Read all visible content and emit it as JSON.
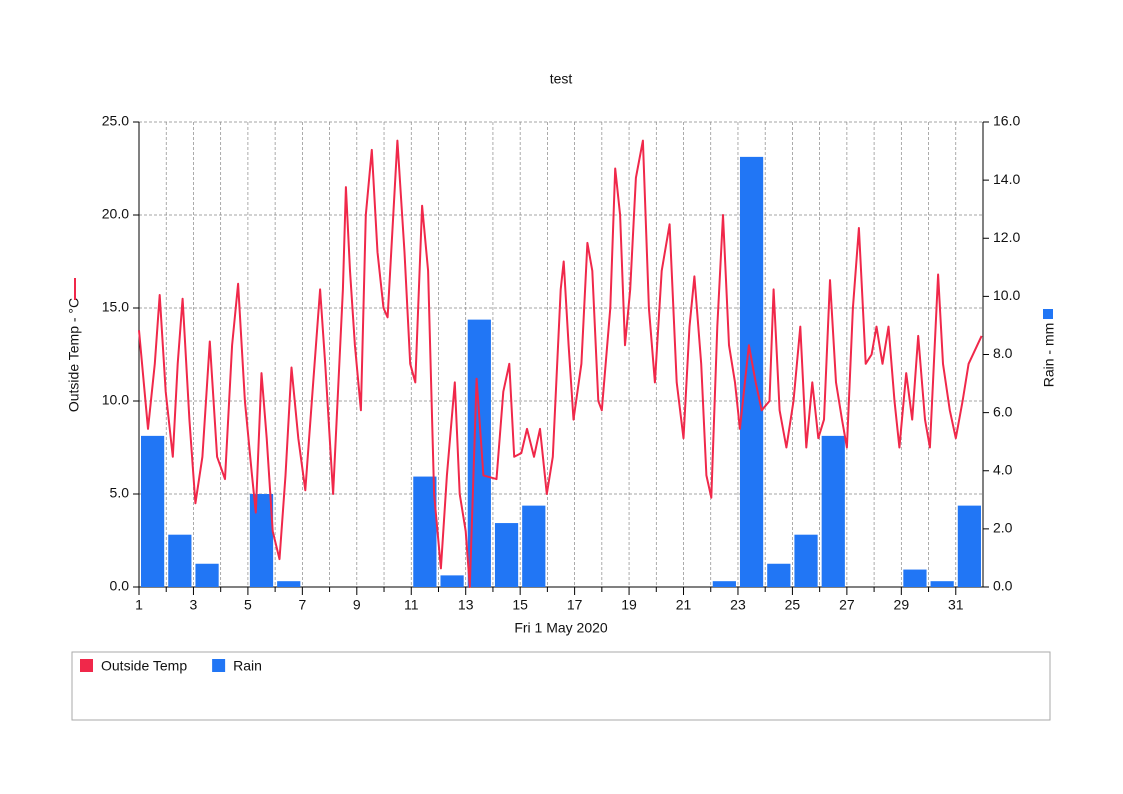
{
  "chart_data": {
    "type": "combo",
    "title": "test",
    "x_label": "Fri 1 May 2020",
    "y_label": "Outside Temp - °C",
    "y2_label": "Rain - mm",
    "xlim": [
      1,
      32
    ],
    "xticks": [
      1,
      3,
      5,
      7,
      9,
      11,
      13,
      15,
      17,
      19,
      21,
      23,
      25,
      27,
      29,
      31
    ],
    "ylim": [
      0,
      25
    ],
    "yticks": [
      {
        "value": 0,
        "label": "0.0"
      },
      {
        "value": 5,
        "label": "5.0"
      },
      {
        "value": 10,
        "label": "10.0"
      },
      {
        "value": 15,
        "label": "15.0"
      },
      {
        "value": 20,
        "label": "20.0"
      },
      {
        "value": 25,
        "label": "25.0"
      }
    ],
    "y2lim": [
      0,
      16
    ],
    "y2ticks": [
      {
        "value": 0,
        "label": "0.0"
      },
      {
        "value": 2,
        "label": "2.0"
      },
      {
        "value": 4,
        "label": "4.0"
      },
      {
        "value": 6,
        "label": "6.0"
      },
      {
        "value": 8,
        "label": "8.0"
      },
      {
        "value": 10,
        "label": "10.0"
      },
      {
        "value": 12,
        "label": "12.0"
      },
      {
        "value": 14,
        "label": "14.0"
      },
      {
        "value": 16,
        "label": "16.0"
      }
    ],
    "grid": true,
    "series": [
      {
        "name": "Rain",
        "type": "bar",
        "axis": "y2",
        "color": "#2176f5",
        "x": [
          1,
          2,
          3,
          4,
          5,
          6,
          7,
          8,
          9,
          10,
          11,
          12,
          13,
          14,
          15,
          16,
          17,
          18,
          19,
          20,
          21,
          22,
          23,
          24,
          25,
          26,
          27,
          28,
          29,
          30,
          31
        ],
        "values": [
          5.2,
          1.8,
          0.8,
          0,
          3.2,
          0.2,
          0,
          0,
          0,
          0,
          3.8,
          0.4,
          9.2,
          2.2,
          2.8,
          0,
          0,
          0,
          0,
          0,
          0,
          0.2,
          14.8,
          0.8,
          1.8,
          5.2,
          0,
          0,
          0.6,
          0.2,
          2.8
        ]
      },
      {
        "name": "Outside Temp",
        "type": "line",
        "color": "#f0284a",
        "x": [
          1.0,
          1.33,
          1.58,
          1.76,
          1.98,
          2.24,
          2.42,
          2.6,
          2.85,
          3.07,
          3.33,
          3.6,
          3.87,
          4.16,
          4.42,
          4.64,
          4.89,
          5.15,
          5.29,
          5.5,
          5.69,
          5.91,
          6.16,
          6.38,
          6.6,
          6.85,
          7.11,
          7.4,
          7.65,
          7.84,
          8.13,
          8.49,
          8.6,
          8.75,
          8.93,
          9.15,
          9.33,
          9.55,
          9.76,
          9.98,
          10.13,
          10.49,
          10.75,
          10.96,
          11.15,
          11.4,
          11.62,
          11.84,
          12.09,
          12.31,
          12.6,
          12.78,
          13.0,
          13.15,
          13.4,
          13.65,
          14.13,
          14.38,
          14.6,
          14.78,
          15.04,
          15.25,
          15.51,
          15.73,
          15.98,
          16.2,
          16.49,
          16.6,
          16.78,
          16.96,
          17.25,
          17.47,
          17.65,
          17.87,
          18.0,
          18.31,
          18.49,
          18.67,
          18.85,
          19.04,
          19.25,
          19.51,
          19.73,
          19.95,
          20.2,
          20.49,
          20.75,
          21.0,
          21.22,
          21.4,
          21.65,
          21.84,
          22.02,
          22.24,
          22.45,
          22.67,
          22.89,
          23.07,
          23.4,
          23.65,
          23.87,
          24.16,
          24.31,
          24.53,
          24.78,
          25.04,
          25.29,
          25.51,
          25.73,
          25.95,
          26.16,
          26.38,
          26.6,
          26.82,
          27.0,
          27.22,
          27.44,
          27.69,
          27.91,
          28.09,
          28.31,
          28.53,
          28.75,
          28.93,
          29.18,
          29.4,
          29.62,
          29.87,
          30.05,
          30.35,
          30.53,
          30.78,
          31.0,
          31.25,
          31.47,
          31.95
        ],
        "values": [
          13.8,
          8.5,
          12,
          15.7,
          10.5,
          7,
          12,
          15.5,
          9,
          4.5,
          7,
          13.2,
          7,
          5.8,
          13,
          16.3,
          10,
          6,
          4,
          11.5,
          8,
          3,
          1.5,
          6,
          11.8,
          8,
          5.2,
          11,
          16,
          12,
          5,
          16,
          21.5,
          17,
          13,
          9.5,
          20,
          23.5,
          18,
          15,
          14.5,
          24,
          18,
          12,
          11,
          20.5,
          17,
          5,
          1,
          6,
          11,
          5,
          3,
          0,
          11.2,
          6,
          5.8,
          10.5,
          12,
          7,
          7.2,
          8.5,
          7,
          8.5,
          5,
          7,
          16,
          17.5,
          13,
          9,
          12,
          18.5,
          17,
          10,
          9.5,
          15,
          22.5,
          20,
          13,
          16,
          22,
          24,
          15,
          11,
          17,
          19.5,
          11,
          8,
          14,
          16.7,
          12,
          6,
          4.8,
          14,
          20,
          13,
          11,
          8.5,
          13,
          11,
          9.5,
          10,
          16,
          9.5,
          7.5,
          10,
          14,
          7.5,
          11,
          8,
          9,
          16.5,
          11,
          9,
          7.5,
          15,
          19.3,
          12,
          12.5,
          14,
          12,
          14,
          10,
          7.5,
          11.5,
          9,
          13.5,
          9,
          7.5,
          16.8,
          12,
          9.5,
          8,
          10,
          12,
          13.5
        ]
      }
    ]
  }
}
